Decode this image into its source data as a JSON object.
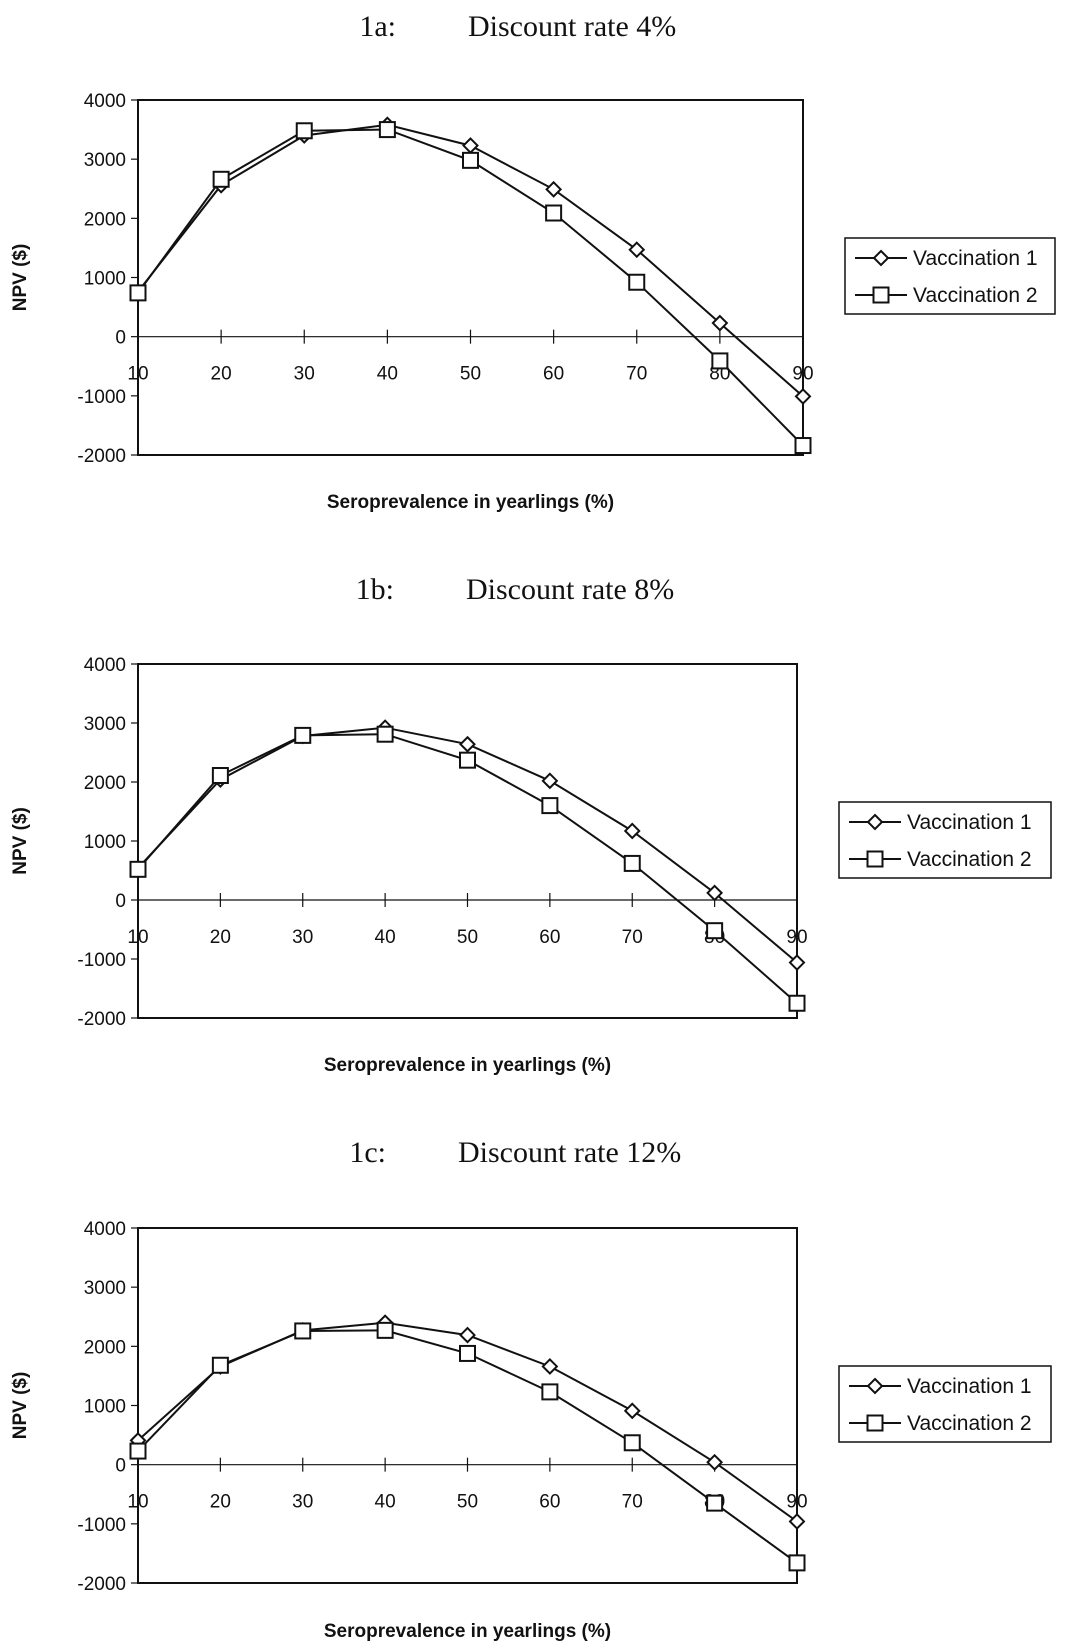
{
  "chart_data": [
    {
      "type": "line",
      "title_prefix": "1a:",
      "title": "Discount rate 4%",
      "xlabel": "Seroprevalence in yearlings (%)",
      "ylabel": "NPV ($)",
      "x": [
        10,
        20,
        30,
        40,
        50,
        60,
        70,
        80,
        90
      ],
      "ylim": [
        -2000,
        4000
      ],
      "yticks": [
        4000,
        3000,
        2000,
        1000,
        0,
        -1000,
        -2000
      ],
      "legend_position": "right",
      "series": [
        {
          "name": "Vaccination 1",
          "marker": "diamond",
          "values": [
            760,
            2560,
            3400,
            3580,
            3230,
            2490,
            1470,
            230,
            -1010
          ]
        },
        {
          "name": "Vaccination 2",
          "marker": "square",
          "values": [
            740,
            2660,
            3480,
            3500,
            2980,
            2090,
            920,
            -410,
            -1840
          ]
        }
      ]
    },
    {
      "type": "line",
      "title_prefix": "1b:",
      "title": "Discount rate 8%",
      "xlabel": "Seroprevalence in yearlings (%)",
      "ylabel": "NPV ($)",
      "x": [
        10,
        20,
        30,
        40,
        50,
        60,
        70,
        80,
        90
      ],
      "ylim": [
        -2000,
        4000
      ],
      "yticks": [
        4000,
        3000,
        2000,
        1000,
        0,
        -1000,
        -2000
      ],
      "legend_position": "right",
      "series": [
        {
          "name": "Vaccination 1",
          "marker": "diamond",
          "values": [
            540,
            2040,
            2780,
            2920,
            2640,
            2020,
            1170,
            120,
            -1060
          ]
        },
        {
          "name": "Vaccination 2",
          "marker": "square",
          "values": [
            520,
            2110,
            2790,
            2810,
            2370,
            1600,
            620,
            -520,
            -1750
          ]
        }
      ]
    },
    {
      "type": "line",
      "title_prefix": "1c:",
      "title": "Discount rate 12%",
      "xlabel": "Seroprevalence in yearlings (%)",
      "ylabel": "NPV ($)",
      "x": [
        10,
        20,
        30,
        40,
        50,
        60,
        70,
        80,
        90
      ],
      "ylim": [
        -2000,
        4000
      ],
      "yticks": [
        4000,
        3000,
        2000,
        1000,
        0,
        -1000,
        -2000
      ],
      "legend_position": "right",
      "series": [
        {
          "name": "Vaccination 1",
          "marker": "diamond",
          "values": [
            410,
            1660,
            2270,
            2400,
            2190,
            1660,
            910,
            40,
            -960
          ]
        },
        {
          "name": "Vaccination 2",
          "marker": "square",
          "values": [
            230,
            1680,
            2260,
            2270,
            1880,
            1230,
            370,
            -650,
            -1660
          ]
        }
      ]
    }
  ]
}
